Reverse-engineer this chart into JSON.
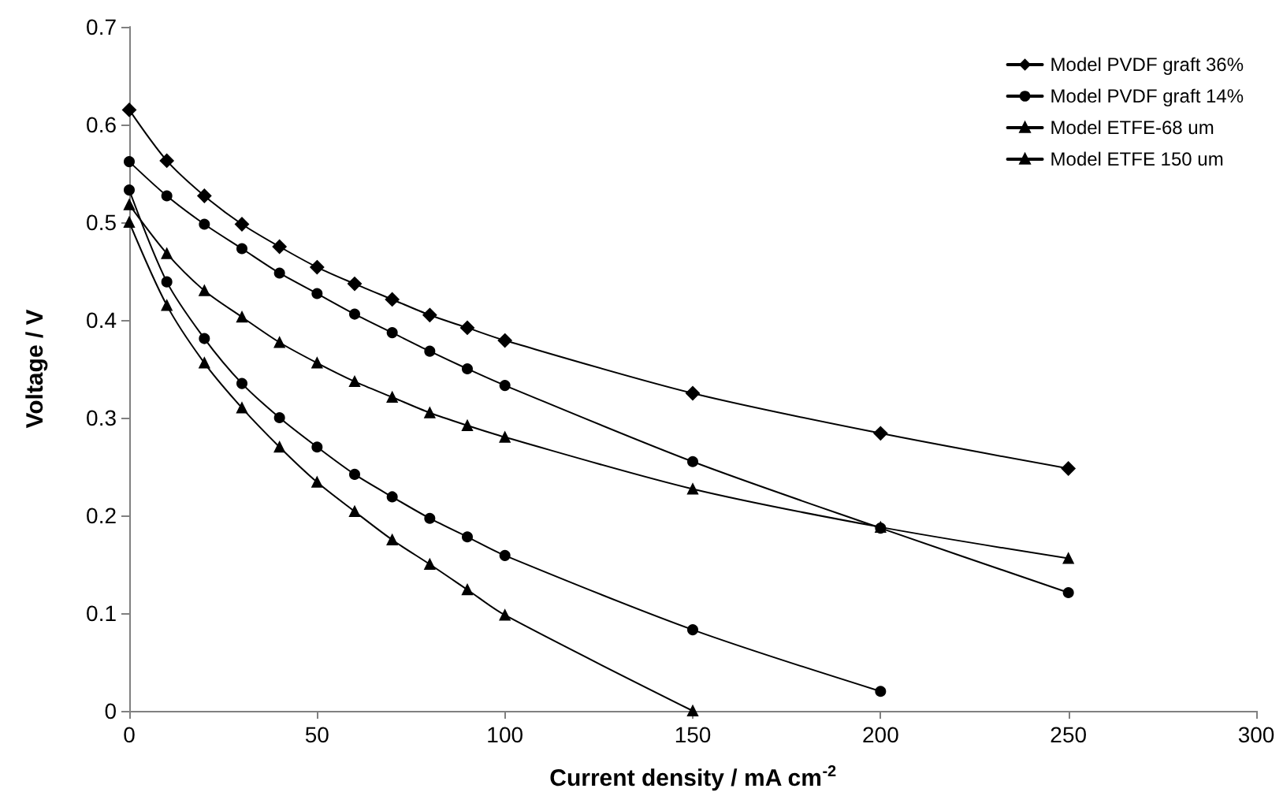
{
  "chart_data": {
    "type": "line",
    "xlabel": "Current density / mA cm$^{-2}$",
    "ylabel": "Voltage / V",
    "xlim": [
      0,
      300
    ],
    "xticks": [
      0,
      50,
      100,
      150,
      200,
      250,
      300
    ],
    "ylim": [
      0,
      0.7
    ],
    "yticks": [
      0,
      0.1,
      0.2,
      0.3,
      0.4,
      0.5,
      0.6,
      0.7
    ],
    "grid": false,
    "legend": "top right",
    "line_style": "solid",
    "series": [
      {
        "name": "Model PVDF graft 36%",
        "color": "#000000",
        "marker": "diamond",
        "x": [
          0,
          10,
          20,
          30,
          40,
          50,
          60,
          70,
          80,
          90,
          100,
          150,
          200,
          250
        ],
        "values": [
          0.615,
          0.563,
          0.527,
          0.498,
          0.475,
          0.454,
          0.437,
          0.421,
          0.405,
          0.392,
          0.379,
          0.325,
          0.284,
          0.248
        ]
      },
      {
        "name": "Model PVDF graft 14%",
        "color": "#000000",
        "marker": "circle",
        "x": [
          0,
          10,
          20,
          30,
          40,
          50,
          60,
          70,
          80,
          90,
          100,
          150,
          200
        ],
        "values": [
          0.533,
          0.439,
          0.381,
          0.335,
          0.3,
          0.27,
          0.242,
          0.219,
          0.197,
          0.178,
          0.159,
          0.083,
          0.02
        ]
      },
      {
        "name": "Model ETFE-68 um",
        "color": "#000000",
        "marker": "triangle",
        "x": [
          0,
          10,
          20,
          30,
          40,
          50,
          60,
          70,
          80,
          90,
          100,
          150,
          200,
          250
        ],
        "values": [
          0.518,
          0.468,
          0.43,
          0.403,
          0.377,
          0.356,
          0.337,
          0.321,
          0.305,
          0.292,
          0.28,
          0.227,
          0.188,
          0.156
        ]
      },
      {
        "name": "Model ETFE 150 um",
        "color": "#000000",
        "marker": "triangle",
        "x": [
          0,
          10,
          20,
          30,
          40,
          50,
          60,
          70,
          80,
          90,
          100,
          150
        ],
        "values": [
          0.5,
          0.415,
          0.356,
          0.31,
          0.27,
          0.234,
          0.204,
          0.175,
          0.15,
          0.124,
          0.098,
          0
        ]
      },
      {
        "color": "#000000",
        "marker": "circle",
        "x": [
          0,
          10,
          20,
          30,
          40,
          50,
          60,
          70,
          80,
          90,
          100,
          150,
          200,
          250
        ],
        "values": [
          0.562,
          0.527,
          0.498,
          0.473,
          0.448,
          0.427,
          0.406,
          0.387,
          0.368,
          0.35,
          0.333,
          0.255,
          0.187,
          0.121
        ]
      }
    ]
  }
}
